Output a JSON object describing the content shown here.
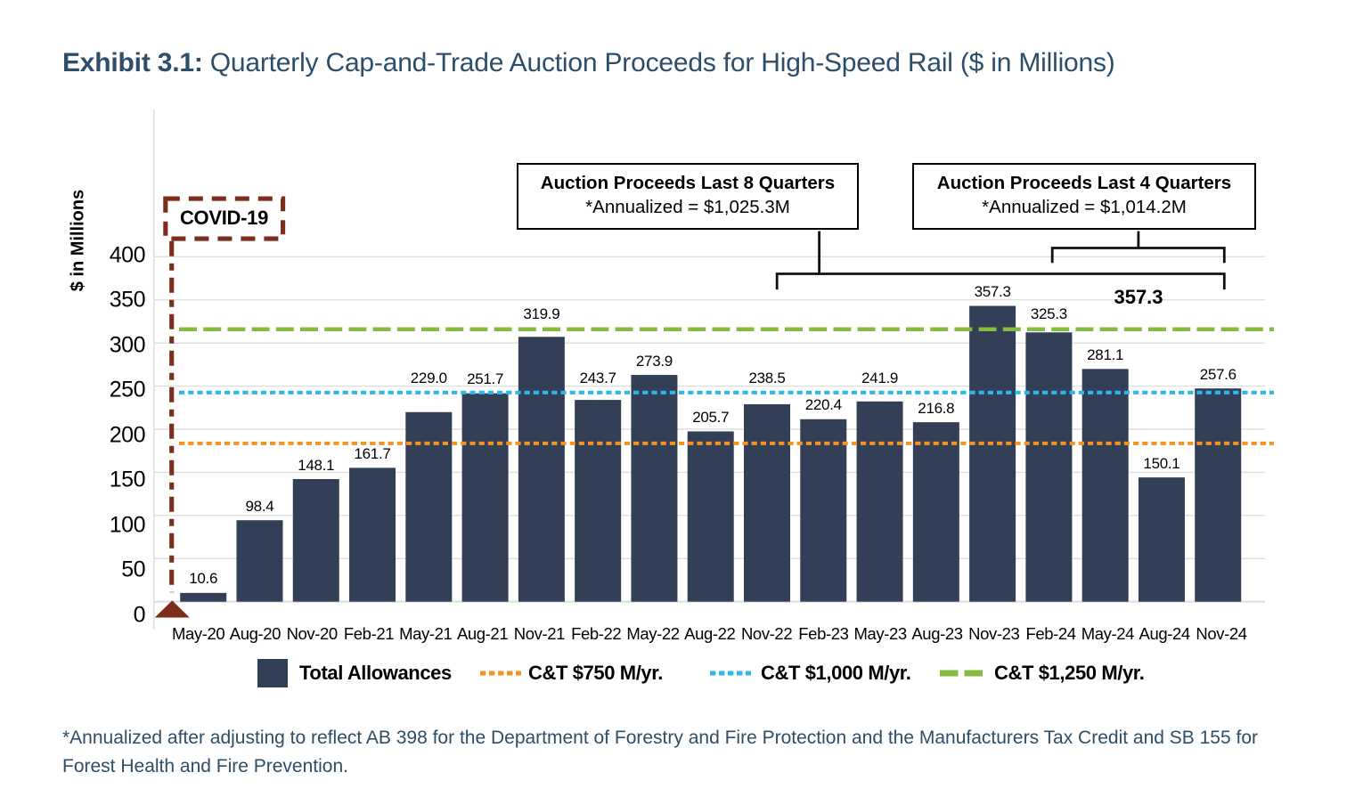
{
  "title": {
    "prefix": "Exhibit 3.1:",
    "text": " Quarterly Cap-and-Trade Auction Proceeds for High-Speed Rail ($ in Millions)"
  },
  "chart_data": {
    "type": "bar",
    "title": "Quarterly Cap-and-Trade Auction Proceeds for High-Speed Rail ($ in Millions)",
    "ylabel": "$ in Millions",
    "xlabel": "",
    "ylim": [
      0,
      400
    ],
    "y_ticks": [
      0,
      50,
      100,
      150,
      200,
      250,
      300,
      350,
      400
    ],
    "grid": "horizontal",
    "legend_position": "bottom",
    "categories": [
      "May-20",
      "Aug-20",
      "Nov-20",
      "Feb-21",
      "May-21",
      "Aug-21",
      "Nov-21",
      "Feb-22",
      "May-22",
      "Aug-22",
      "Nov-22",
      "Feb-23",
      "May-23",
      "Aug-23",
      "Nov-23",
      "Feb-24",
      "May-24",
      "Aug-24",
      "Nov-24"
    ],
    "values": [
      10.6,
      98.4,
      148.1,
      161.7,
      229.0,
      251.7,
      319.9,
      243.7,
      273.9,
      205.7,
      238.5,
      220.4,
      241.9,
      216.8,
      357.3,
      325.3,
      281.1,
      150.1,
      257.6
    ],
    "value_labels": [
      "10.6",
      "98.4",
      "148.1",
      "161.7",
      "229.0",
      "251.7",
      "319.9",
      "243.7",
      "273.9",
      "205.7",
      "238.5",
      "220.4",
      "241.9",
      "216.8",
      "357.3",
      "325.3",
      "281.1",
      "150.1",
      "257.6"
    ],
    "series_name": "Total Allowances",
    "reference_lines": [
      {
        "label": "C&T $750 M/yr.",
        "quarterly_value": 187.5,
        "display_value": 183.6,
        "color": "#F6921E",
        "style": "dotted"
      },
      {
        "label": "C&T $1,000 M/yr.",
        "quarterly_value": 250.0,
        "display_value": 242.5,
        "color": "#2EB7E8",
        "style": "dotted"
      },
      {
        "label": "C&T $1,250 M/yr.",
        "quarterly_value": 312.5,
        "display_value": 315.9,
        "color": "#85BC40",
        "style": "dashed"
      }
    ]
  },
  "colors": {
    "bar": "#323F56",
    "covid": "#7C2D1C",
    "title_text": "#2E4D69",
    "grid": "#DFDFDF",
    "bracket": "#111111"
  },
  "annotations": {
    "covid": {
      "label": "COVID-19"
    },
    "callout_8q": {
      "line1": "Auction Proceeds Last 8 Quarters",
      "line2": "*Annualized = $1,025.3M"
    },
    "callout_4q": {
      "line1": "Auction Proceeds Last 4 Quarters",
      "line2": "*Annualized = $1,014.2M"
    },
    "max_last4": {
      "text": "357.3"
    }
  },
  "legend": {
    "items": [
      {
        "label": "Total Allowances",
        "swatch": "square",
        "color": "#323F56"
      },
      {
        "label": "C&T $750 M/yr.",
        "swatch": "dotted",
        "color": "#F6921E"
      },
      {
        "label": "C&T $1,000 M/yr.",
        "swatch": "dotted",
        "color": "#2EB7E8"
      },
      {
        "label": "C&T $1,250 M/yr.",
        "swatch": "dashed",
        "color": "#85BC40"
      }
    ]
  },
  "footnote": {
    "line1": "*Annualized after adjusting to reflect AB 398 for the Department of Forestry and Fire Protection and the Manufacturers Tax Credit and SB 155 for",
    "line2": "Forest Health and Fire Prevention."
  }
}
